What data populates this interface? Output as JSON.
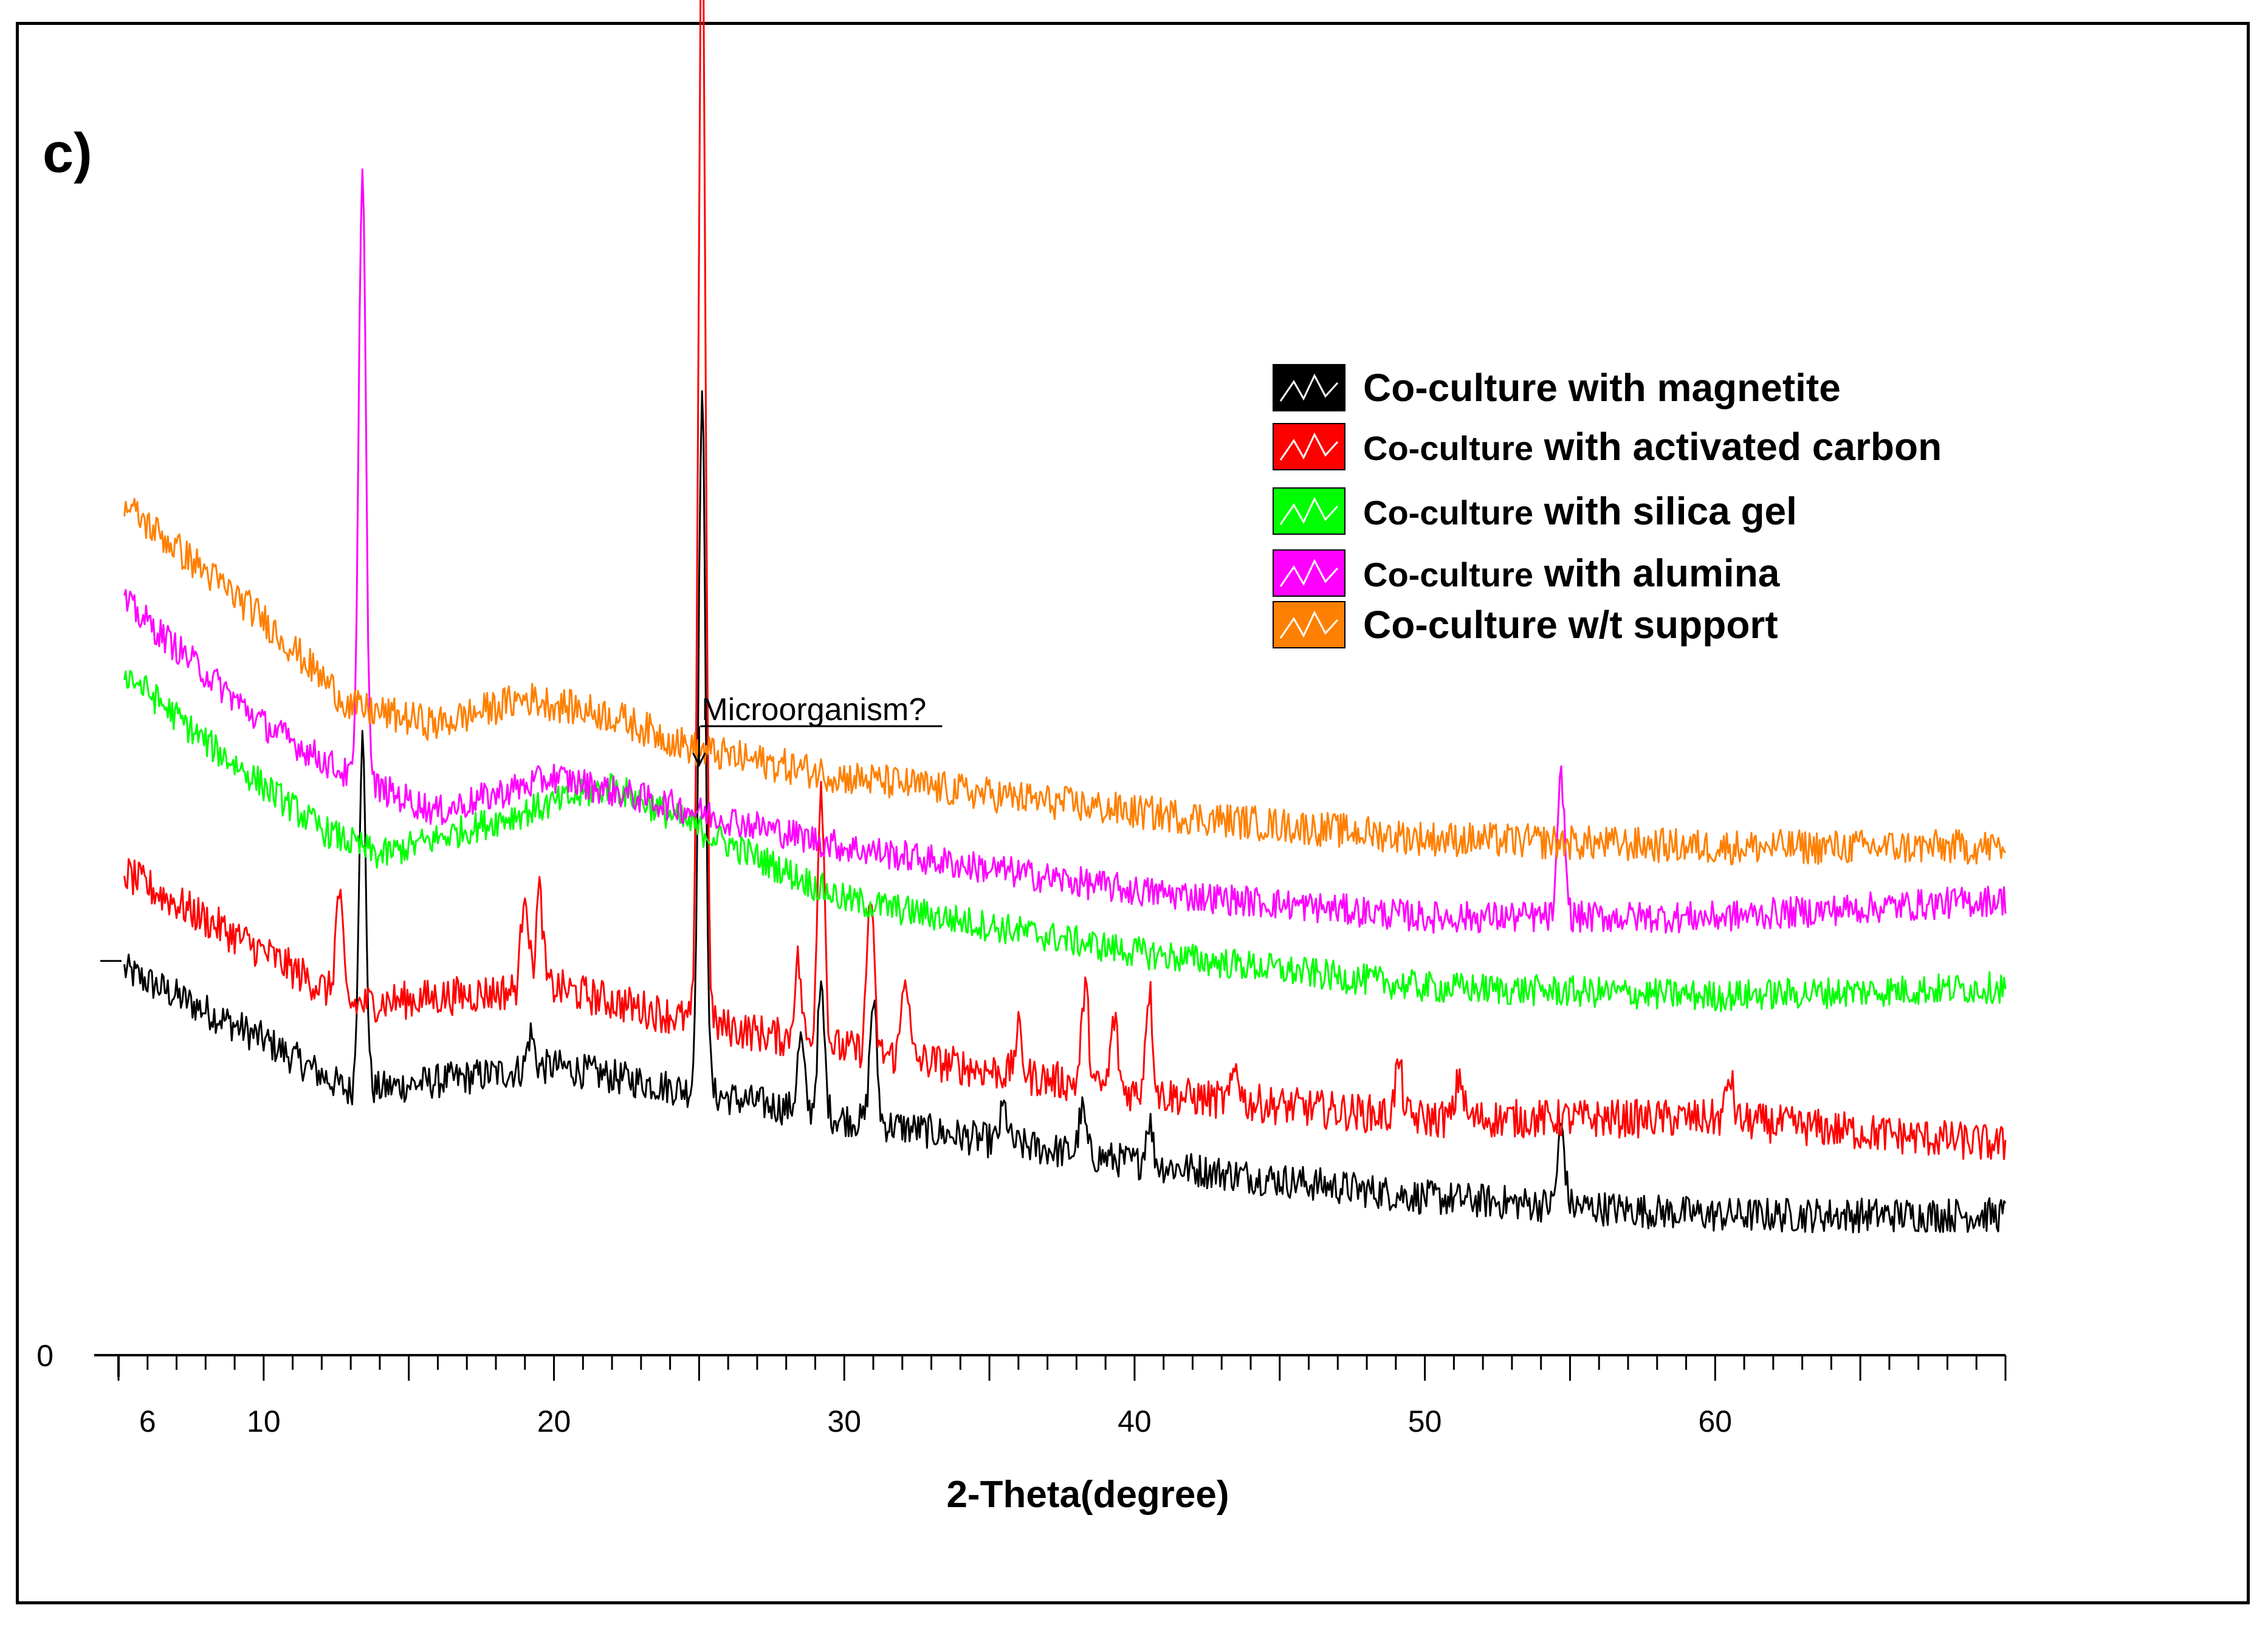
{
  "panel_label": "c)",
  "chart_data": {
    "type": "line",
    "title": "",
    "xlabel": "2-Theta(degree)",
    "ylabel": "",
    "xlim": [
      5,
      70
    ],
    "ylim": [
      0,
      120
    ],
    "x_ticks": [
      6,
      10,
      20,
      30,
      40,
      50,
      60
    ],
    "y_ticks": [
      0
    ],
    "grid": false,
    "legend_position": "top-right",
    "annotations": [
      {
        "text": "Microorganism?",
        "x": 25.0,
        "y": 108
      }
    ],
    "series": [
      {
        "name": "Co-culture with magnetite",
        "legend_prefix": "Co-culture",
        "legend_suffix": " with magnetite",
        "color": "#000000",
        "baseline": [
          [
            5.2,
            44
          ],
          [
            10,
            36
          ],
          [
            13,
            30
          ],
          [
            20,
            33
          ],
          [
            25,
            30
          ],
          [
            30,
            27
          ],
          [
            40,
            22
          ],
          [
            50,
            18
          ],
          [
            60,
            16
          ],
          [
            70,
            16
          ]
        ],
        "noise": 2.0,
        "peaks": [
          [
            13.4,
            40
          ],
          [
            19.2,
            4
          ],
          [
            25.1,
            80
          ],
          [
            28.5,
            8
          ],
          [
            29.2,
            14
          ],
          [
            31.0,
            14
          ],
          [
            35.5,
            4
          ],
          [
            38.2,
            5
          ],
          [
            40.5,
            5
          ],
          [
            54.7,
            9
          ]
        ]
      },
      {
        "name": "Co-culture with activated carbon",
        "legend_prefix": "Co-culture",
        "legend_suffix": " with activated carbon",
        "color": "#ff0000",
        "baseline": [
          [
            5.2,
            55
          ],
          [
            10,
            46
          ],
          [
            13,
            40
          ],
          [
            20,
            42
          ],
          [
            25,
            38
          ],
          [
            30,
            35
          ],
          [
            40,
            30
          ],
          [
            50,
            27
          ],
          [
            60,
            27
          ],
          [
            70,
            24
          ]
        ],
        "noise": 2.2,
        "peaks": [
          [
            12.6,
            12
          ],
          [
            19.0,
            12
          ],
          [
            19.5,
            11
          ],
          [
            25.1,
            130
          ],
          [
            28.4,
            9
          ],
          [
            29.2,
            30
          ],
          [
            30.9,
            18
          ],
          [
            32.1,
            10
          ],
          [
            36,
            5
          ],
          [
            38.3,
            11
          ],
          [
            39.3,
            8
          ],
          [
            40.5,
            12
          ],
          [
            43.5,
            4
          ],
          [
            49.1,
            6
          ],
          [
            51.2,
            5
          ],
          [
            60.5,
            5
          ]
        ]
      },
      {
        "name": "Co-culture with silica gel",
        "legend_prefix": "Co-culture",
        "legend_suffix": " with silica gel",
        "color": "#00ff00",
        "baseline": [
          [
            5.2,
            78
          ],
          [
            8,
            70
          ],
          [
            12,
            60
          ],
          [
            14,
            57
          ],
          [
            17,
            60
          ],
          [
            20,
            63
          ],
          [
            22,
            65
          ],
          [
            25,
            60
          ],
          [
            30,
            52
          ],
          [
            40,
            46
          ],
          [
            50,
            42
          ],
          [
            60,
            41
          ],
          [
            70,
            42
          ]
        ],
        "noise": 1.8,
        "peaks": []
      },
      {
        "name": "Co-culture with alumina",
        "legend_prefix": "Co-culture",
        "legend_suffix": " with alumina",
        "color": "#ff00ff",
        "baseline": [
          [
            5.2,
            86
          ],
          [
            10,
            72
          ],
          [
            13,
            66
          ],
          [
            16,
            62
          ],
          [
            20,
            66
          ],
          [
            25,
            62
          ],
          [
            30,
            58
          ],
          [
            40,
            53
          ],
          [
            50,
            50
          ],
          [
            60,
            50
          ],
          [
            70,
            52
          ]
        ],
        "noise": 1.8,
        "peaks": [
          [
            13.4,
            71
          ],
          [
            54.7,
            16
          ]
        ]
      },
      {
        "name": "Co-culture w/t support",
        "legend_prefix": "Co-culture",
        "legend_suffix": " w/t support",
        "color": "#ff8000",
        "baseline": [
          [
            5.2,
            97
          ],
          [
            10,
            84
          ],
          [
            13,
            74
          ],
          [
            16,
            72
          ],
          [
            19,
            75
          ],
          [
            22,
            73
          ],
          [
            25,
            69
          ],
          [
            30,
            66
          ],
          [
            40,
            62
          ],
          [
            50,
            59
          ],
          [
            60,
            58
          ],
          [
            70,
            58
          ]
        ],
        "noise": 2.0,
        "peaks": []
      }
    ]
  }
}
